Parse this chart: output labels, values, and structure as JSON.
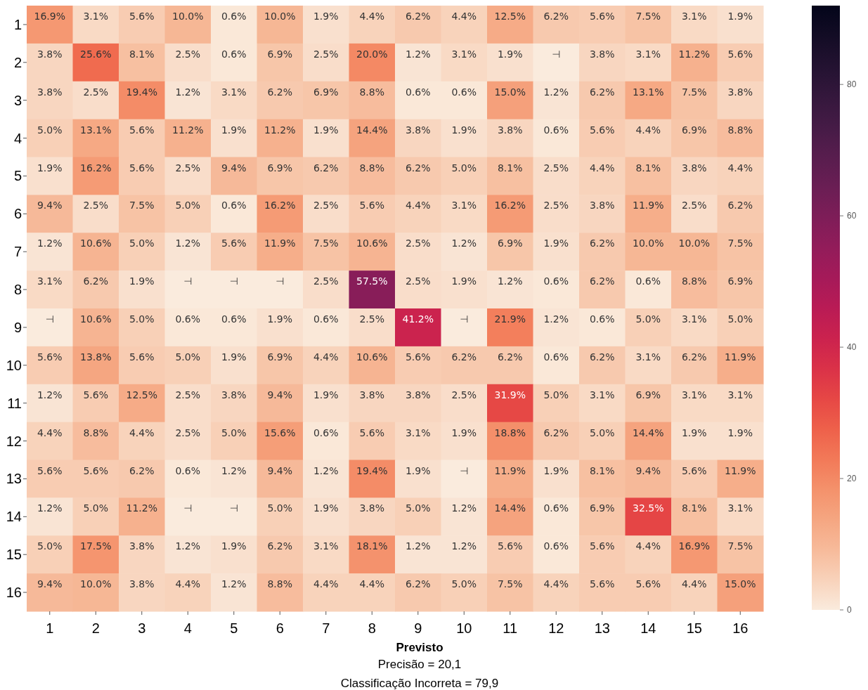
{
  "chart_data": {
    "type": "heatmap",
    "xlabel": "Previsto",
    "annotations": [
      "Precisão = 20,1",
      "Classificação Incorreta = 79,9"
    ],
    "categories": [
      "1",
      "2",
      "3",
      "4",
      "5",
      "6",
      "7",
      "8",
      "9",
      "10",
      "11",
      "12",
      "13",
      "14",
      "15",
      "16"
    ],
    "y_categories": [
      "1",
      "2",
      "3",
      "4",
      "5",
      "6",
      "7",
      "8",
      "9",
      "10",
      "11",
      "12",
      "13",
      "14",
      "15",
      "16"
    ],
    "clim": [
      0,
      92
    ],
    "cticks": [
      0,
      20,
      40,
      60,
      80
    ],
    "cells": [
      [
        16.9,
        3.1,
        5.6,
        10.0,
        0.6,
        10.0,
        1.9,
        4.4,
        6.2,
        4.4,
        12.5,
        6.2,
        5.6,
        7.5,
        3.1,
        1.9
      ],
      [
        3.8,
        25.6,
        8.1,
        2.5,
        0.6,
        6.9,
        2.5,
        20.0,
        1.2,
        3.1,
        1.9,
        0,
        3.8,
        3.1,
        11.2,
        5.6
      ],
      [
        3.8,
        2.5,
        19.4,
        1.2,
        3.1,
        6.2,
        6.9,
        8.8,
        0.6,
        0.6,
        15.0,
        1.2,
        6.2,
        13.1,
        7.5,
        3.8
      ],
      [
        5.0,
        13.1,
        5.6,
        11.2,
        1.9,
        11.2,
        1.9,
        14.4,
        3.8,
        1.9,
        3.8,
        0.6,
        5.6,
        4.4,
        6.9,
        8.8
      ],
      [
        1.9,
        16.2,
        5.6,
        2.5,
        9.4,
        6.9,
        6.2,
        8.8,
        6.2,
        5.0,
        8.1,
        2.5,
        4.4,
        8.1,
        3.8,
        4.4
      ],
      [
        9.4,
        2.5,
        7.5,
        5.0,
        0.6,
        16.2,
        2.5,
        5.6,
        4.4,
        3.1,
        16.2,
        2.5,
        3.8,
        11.9,
        2.5,
        6.2
      ],
      [
        1.2,
        10.6,
        5.0,
        1.2,
        5.6,
        11.9,
        7.5,
        10.6,
        2.5,
        1.2,
        6.9,
        1.9,
        6.2,
        10.0,
        10.0,
        7.5
      ],
      [
        3.1,
        6.2,
        1.9,
        0,
        0,
        0,
        2.5,
        57.5,
        2.5,
        1.9,
        1.2,
        0.6,
        6.2,
        0.6,
        8.8,
        6.9
      ],
      [
        0,
        10.6,
        5.0,
        0.6,
        0.6,
        1.9,
        0.6,
        2.5,
        41.2,
        0,
        21.9,
        1.2,
        0.6,
        5.0,
        3.1,
        5.0
      ],
      [
        5.6,
        13.8,
        5.6,
        5.0,
        1.9,
        6.9,
        4.4,
        10.6,
        5.6,
        6.2,
        6.2,
        0.6,
        6.2,
        3.1,
        6.2,
        11.9
      ],
      [
        1.2,
        5.6,
        12.5,
        2.5,
        3.8,
        9.4,
        1.9,
        3.8,
        3.8,
        2.5,
        31.9,
        5.0,
        3.1,
        6.9,
        3.1,
        3.1
      ],
      [
        4.4,
        8.8,
        4.4,
        2.5,
        5.0,
        15.6,
        0.6,
        5.6,
        3.1,
        1.9,
        18.8,
        6.2,
        5.0,
        14.4,
        1.9,
        1.9
      ],
      [
        5.6,
        5.6,
        6.2,
        0.6,
        1.2,
        9.4,
        1.2,
        19.4,
        1.9,
        0,
        11.9,
        1.9,
        8.1,
        9.4,
        5.6,
        11.9
      ],
      [
        1.2,
        5.0,
        11.2,
        0,
        0,
        5.0,
        1.9,
        3.8,
        5.0,
        1.2,
        14.4,
        0.6,
        6.9,
        32.5,
        8.1,
        3.1
      ],
      [
        5.0,
        17.5,
        3.8,
        1.2,
        1.9,
        6.2,
        3.1,
        18.1,
        1.2,
        1.2,
        5.6,
        0.6,
        5.6,
        4.4,
        16.9,
        7.5
      ],
      [
        9.4,
        10.0,
        3.8,
        4.4,
        1.2,
        8.8,
        4.4,
        4.4,
        6.2,
        5.0,
        7.5,
        4.4,
        5.6,
        5.6,
        4.4,
        15.0
      ]
    ],
    "cell_labels": [
      [
        "16.9%",
        "3.1%",
        "5.6%",
        "10.0%",
        "0.6%",
        "10.0%",
        "1.9%",
        "4.4%",
        "6.2%",
        "4.4%",
        "12.5%",
        "6.2%",
        "5.6%",
        "7.5%",
        "3.1%",
        "1.9%"
      ],
      [
        "3.8%",
        "25.6%",
        "8.1%",
        "2.5%",
        "0.6%",
        "6.9%",
        "2.5%",
        "20.0%",
        "1.2%",
        "3.1%",
        "1.9%",
        "⊣",
        "3.8%",
        "3.1%",
        "11.2%",
        "5.6%"
      ],
      [
        "3.8%",
        "2.5%",
        "19.4%",
        "1.2%",
        "3.1%",
        "6.2%",
        "6.9%",
        "8.8%",
        "0.6%",
        "0.6%",
        "15.0%",
        "1.2%",
        "6.2%",
        "13.1%",
        "7.5%",
        "3.8%"
      ],
      [
        "5.0%",
        "13.1%",
        "5.6%",
        "11.2%",
        "1.9%",
        "11.2%",
        "1.9%",
        "14.4%",
        "3.8%",
        "1.9%",
        "3.8%",
        "0.6%",
        "5.6%",
        "4.4%",
        "6.9%",
        "8.8%"
      ],
      [
        "1.9%",
        "16.2%",
        "5.6%",
        "2.5%",
        "9.4%",
        "6.9%",
        "6.2%",
        "8.8%",
        "6.2%",
        "5.0%",
        "8.1%",
        "2.5%",
        "4.4%",
        "8.1%",
        "3.8%",
        "4.4%"
      ],
      [
        "9.4%",
        "2.5%",
        "7.5%",
        "5.0%",
        "0.6%",
        "16.2%",
        "2.5%",
        "5.6%",
        "4.4%",
        "3.1%",
        "16.2%",
        "2.5%",
        "3.8%",
        "11.9%",
        "2.5%",
        "6.2%"
      ],
      [
        "1.2%",
        "10.6%",
        "5.0%",
        "1.2%",
        "5.6%",
        "11.9%",
        "7.5%",
        "10.6%",
        "2.5%",
        "1.2%",
        "6.9%",
        "1.9%",
        "6.2%",
        "10.0%",
        "10.0%",
        "7.5%"
      ],
      [
        "3.1%",
        "6.2%",
        "1.9%",
        "⊣",
        "⊣",
        "⊣",
        "2.5%",
        "57.5%",
        "2.5%",
        "1.9%",
        "1.2%",
        "0.6%",
        "6.2%",
        "0.6%",
        "8.8%",
        "6.9%"
      ],
      [
        "⊣",
        "10.6%",
        "5.0%",
        "0.6%",
        "0.6%",
        "1.9%",
        "0.6%",
        "2.5%",
        "41.2%",
        "⊣",
        "21.9%",
        "1.2%",
        "0.6%",
        "5.0%",
        "3.1%",
        "5.0%"
      ],
      [
        "5.6%",
        "13.8%",
        "5.6%",
        "5.0%",
        "1.9%",
        "6.9%",
        "4.4%",
        "10.6%",
        "5.6%",
        "6.2%",
        "6.2%",
        "0.6%",
        "6.2%",
        "3.1%",
        "6.2%",
        "11.9%"
      ],
      [
        "1.2%",
        "5.6%",
        "12.5%",
        "2.5%",
        "3.8%",
        "9.4%",
        "1.9%",
        "3.8%",
        "3.8%",
        "2.5%",
        "31.9%",
        "5.0%",
        "3.1%",
        "6.9%",
        "3.1%",
        "3.1%"
      ],
      [
        "4.4%",
        "8.8%",
        "4.4%",
        "2.5%",
        "5.0%",
        "15.6%",
        "0.6%",
        "5.6%",
        "3.1%",
        "1.9%",
        "18.8%",
        "6.2%",
        "5.0%",
        "14.4%",
        "1.9%",
        "1.9%"
      ],
      [
        "5.6%",
        "5.6%",
        "6.2%",
        "0.6%",
        "1.2%",
        "9.4%",
        "1.2%",
        "19.4%",
        "1.9%",
        "⊣",
        "11.9%",
        "1.9%",
        "8.1%",
        "9.4%",
        "5.6%",
        "11.9%"
      ],
      [
        "1.2%",
        "5.0%",
        "11.2%",
        "⊣",
        "⊣",
        "5.0%",
        "1.9%",
        "3.8%",
        "5.0%",
        "1.2%",
        "14.4%",
        "0.6%",
        "6.9%",
        "32.5%",
        "8.1%",
        "3.1%"
      ],
      [
        "5.0%",
        "17.5%",
        "3.8%",
        "1.2%",
        "1.9%",
        "6.2%",
        "3.1%",
        "18.1%",
        "1.2%",
        "1.2%",
        "5.6%",
        "0.6%",
        "5.6%",
        "4.4%",
        "16.9%",
        "7.5%"
      ],
      [
        "9.4%",
        "10.0%",
        "3.8%",
        "4.4%",
        "1.2%",
        "8.8%",
        "4.4%",
        "4.4%",
        "6.2%",
        "5.0%",
        "7.5%",
        "4.4%",
        "5.6%",
        "5.6%",
        "4.4%",
        "15.0%"
      ]
    ]
  }
}
